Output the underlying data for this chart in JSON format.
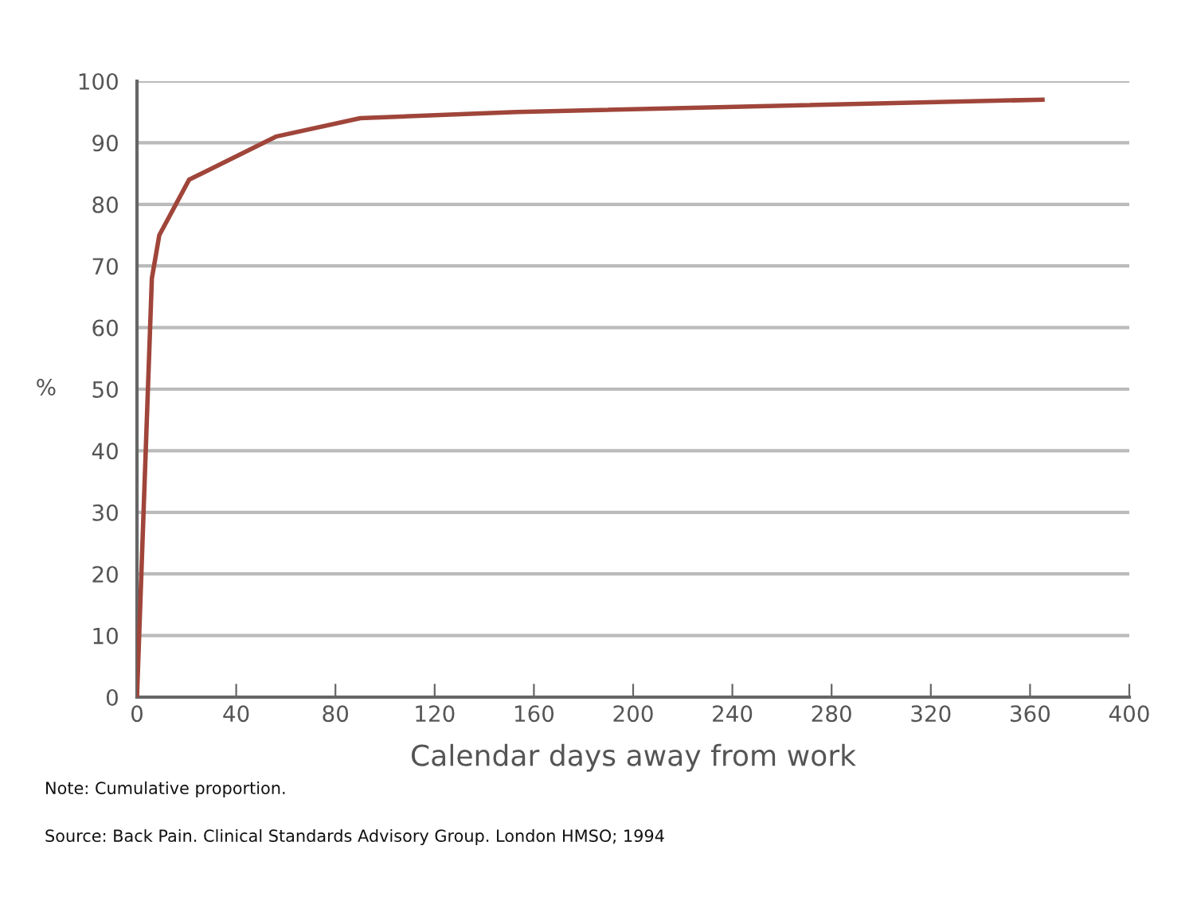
{
  "chart_data": {
    "type": "line",
    "xlabel": "Calendar days away from work",
    "ylabel": "%",
    "x": [
      0,
      6,
      9,
      21,
      56,
      90,
      153,
      365
    ],
    "series": [
      {
        "color": "#a0453a",
        "values": [
          0,
          68,
          75,
          84,
          91,
          94,
          95,
          97
        ]
      }
    ],
    "xlim": [
      0,
      400
    ],
    "xticks": [
      0,
      40,
      80,
      120,
      160,
      200,
      240,
      280,
      320,
      360,
      400
    ],
    "ylim": [
      0,
      100
    ],
    "yticks": [
      0,
      10,
      20,
      30,
      40,
      50,
      60,
      70,
      80,
      90,
      100
    ],
    "grid": "y",
    "legend": false,
    "marker": "none",
    "line_style": "solid",
    "annotations": [
      "Note: Cumulative proportion.",
      "Source: Back Pain. Clinical Standards Advisory Group. London HMSO; 1994"
    ]
  }
}
